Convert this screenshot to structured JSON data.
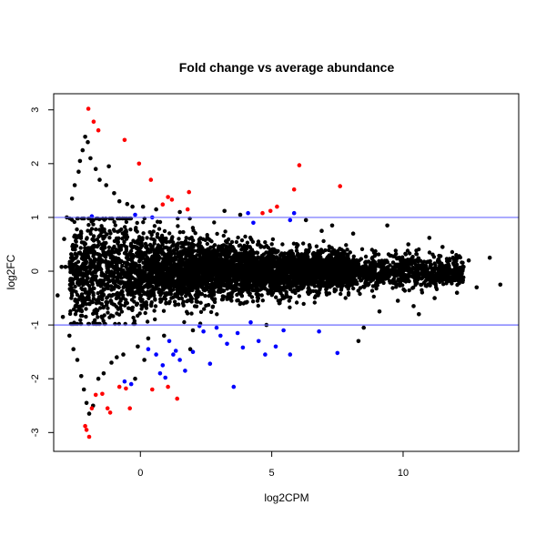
{
  "chart_data": {
    "type": "scatter",
    "title": "Fold change vs average abundance",
    "xlabel": "log2CPM",
    "ylabel": "log2FC",
    "xlim": [
      -3.3,
      14.4
    ],
    "ylim": [
      -3.35,
      3.3
    ],
    "x_ticks": [
      0,
      5,
      10
    ],
    "y_ticks": [
      -3,
      -2,
      -1,
      0,
      1,
      2,
      3
    ],
    "x_tick_labels": [
      "0",
      "5",
      "10"
    ],
    "y_tick_labels": [
      "-3",
      "-2",
      "-1",
      "0",
      "1",
      "2",
      "3"
    ],
    "grid": false,
    "legend": "none",
    "hlines": [
      {
        "y": 1,
        "color": "#0000ff"
      },
      {
        "y": -1,
        "color": "#0000ff"
      }
    ],
    "colors": {
      "default": "#000000",
      "significant_up": "#ff0000",
      "significant_down": "#0000ff",
      "hline": "#6b6bff"
    },
    "series": [
      {
        "color": "#ff0000",
        "points": [
          [
            -1.98,
            3.02
          ],
          [
            -1.78,
            2.78
          ],
          [
            -1.6,
            2.62
          ],
          [
            -0.6,
            2.44
          ],
          [
            -0.05,
            2.0
          ],
          [
            0.4,
            1.7
          ],
          [
            1.05,
            1.38
          ],
          [
            1.2,
            1.33
          ],
          [
            1.85,
            1.47
          ],
          [
            0.85,
            1.24
          ],
          [
            1.8,
            1.15
          ],
          [
            4.65,
            1.08
          ],
          [
            4.95,
            1.12
          ],
          [
            5.2,
            1.2
          ],
          [
            5.85,
            1.52
          ],
          [
            6.05,
            1.97
          ],
          [
            7.6,
            1.58
          ],
          [
            -1.95,
            -3.08
          ],
          [
            -2.05,
            -2.95
          ],
          [
            -2.1,
            -2.88
          ],
          [
            -1.85,
            -2.55
          ],
          [
            -1.7,
            -2.3
          ],
          [
            -1.45,
            -2.28
          ],
          [
            -1.25,
            -2.55
          ],
          [
            -1.15,
            -2.63
          ],
          [
            -0.8,
            -2.15
          ],
          [
            -0.55,
            -2.18
          ],
          [
            -0.4,
            -2.55
          ],
          [
            0.45,
            -2.2
          ],
          [
            1.05,
            -2.15
          ],
          [
            1.4,
            -2.37
          ]
        ]
      },
      {
        "color": "#0000ff",
        "points": [
          [
            -1.85,
            1.02
          ],
          [
            -0.2,
            1.05
          ],
          [
            0.45,
            1.0
          ],
          [
            4.1,
            1.08
          ],
          [
            4.3,
            0.9
          ],
          [
            5.7,
            0.95
          ],
          [
            5.85,
            1.08
          ],
          [
            0.3,
            -1.45
          ],
          [
            0.6,
            -1.55
          ],
          [
            0.75,
            -1.9
          ],
          [
            0.85,
            -1.75
          ],
          [
            0.95,
            -1.98
          ],
          [
            1.1,
            -1.3
          ],
          [
            1.25,
            -1.55
          ],
          [
            1.35,
            -1.48
          ],
          [
            1.5,
            -1.65
          ],
          [
            1.7,
            -1.85
          ],
          [
            2.0,
            -1.5
          ],
          [
            2.25,
            -1.02
          ],
          [
            2.4,
            -1.12
          ],
          [
            2.65,
            -1.72
          ],
          [
            2.9,
            -1.05
          ],
          [
            3.05,
            -1.2
          ],
          [
            3.3,
            -1.35
          ],
          [
            3.55,
            -2.15
          ],
          [
            3.7,
            -1.15
          ],
          [
            3.9,
            -1.42
          ],
          [
            4.2,
            -0.95
          ],
          [
            4.5,
            -1.3
          ],
          [
            4.75,
            -1.55
          ],
          [
            5.15,
            -1.4
          ],
          [
            5.45,
            -1.1
          ],
          [
            5.7,
            -1.55
          ],
          [
            6.8,
            -1.12
          ],
          [
            7.5,
            -1.52
          ],
          [
            -0.6,
            -2.05
          ],
          [
            -0.35,
            -2.1
          ]
        ]
      },
      {
        "color": "#000000",
        "points": [
          [
            -3.0,
            0.08
          ],
          [
            -2.85,
            0.08
          ],
          [
            -2.7,
            0.08
          ],
          [
            -2.55,
            0.08
          ],
          [
            -2.4,
            0.08
          ],
          [
            -2.25,
            0.08
          ],
          [
            -2.1,
            0.08
          ],
          [
            -1.95,
            0.08
          ],
          [
            -1.8,
            0.08
          ],
          [
            -3.15,
            -0.45
          ],
          [
            -2.95,
            -0.85
          ],
          [
            -2.9,
            0.6
          ],
          [
            -2.8,
            1.0
          ],
          [
            -2.7,
            -1.2
          ],
          [
            -2.6,
            1.35
          ],
          [
            -2.55,
            -1.45
          ],
          [
            -2.5,
            1.6
          ],
          [
            -2.4,
            -1.65
          ],
          [
            -2.35,
            1.85
          ],
          [
            -2.3,
            2.05
          ],
          [
            -2.25,
            -1.95
          ],
          [
            -2.2,
            2.25
          ],
          [
            -2.15,
            -2.2
          ],
          [
            -2.1,
            2.5
          ],
          [
            -2.05,
            -2.45
          ],
          [
            -2.0,
            2.4
          ],
          [
            -1.95,
            -2.65
          ],
          [
            -1.9,
            2.1
          ],
          [
            -1.8,
            -2.5
          ],
          [
            -1.7,
            1.9
          ],
          [
            -1.6,
            -2.0
          ],
          [
            -1.55,
            1.7
          ],
          [
            -1.4,
            -1.9
          ],
          [
            -1.3,
            1.6
          ],
          [
            -1.2,
            1.95
          ],
          [
            -1.1,
            -1.7
          ],
          [
            -1.0,
            1.45
          ],
          [
            -0.9,
            -1.6
          ],
          [
            -0.8,
            1.3
          ],
          [
            -0.65,
            -1.55
          ],
          [
            -0.5,
            1.25
          ],
          [
            -0.3,
            1.2
          ],
          [
            -0.1,
            -1.4
          ],
          [
            0.1,
            1.2
          ],
          [
            0.3,
            -1.25
          ],
          [
            0.6,
            1.15
          ],
          [
            0.9,
            -1.2
          ],
          [
            1.5,
            1.1
          ],
          [
            2.0,
            -1.1
          ],
          [
            3.2,
            1.12
          ],
          [
            3.8,
            1.05
          ],
          [
            4.8,
            -1.0
          ],
          [
            6.3,
            0.95
          ],
          [
            6.9,
            0.75
          ],
          [
            7.3,
            0.85
          ],
          [
            8.1,
            0.7
          ],
          [
            8.5,
            -1.05
          ],
          [
            9.4,
            0.85
          ],
          [
            9.8,
            -0.55
          ],
          [
            10.2,
            0.5
          ],
          [
            10.6,
            -0.8
          ],
          [
            11.0,
            0.62
          ],
          [
            11.5,
            0.45
          ],
          [
            11.9,
            0.25
          ],
          [
            12.3,
            0.08
          ],
          [
            12.5,
            0.2
          ],
          [
            12.8,
            -0.3
          ],
          [
            13.3,
            0.25
          ],
          [
            13.7,
            -0.25
          ],
          [
            12.05,
            -0.4
          ],
          [
            11.2,
            -0.5
          ],
          [
            10.4,
            -0.65
          ],
          [
            9.1,
            -0.75
          ],
          [
            8.3,
            -1.3
          ],
          [
            -0.2,
            -2.0
          ],
          [
            0.15,
            -1.65
          ],
          [
            1.9,
            -1.45
          ]
        ]
      }
    ]
  }
}
